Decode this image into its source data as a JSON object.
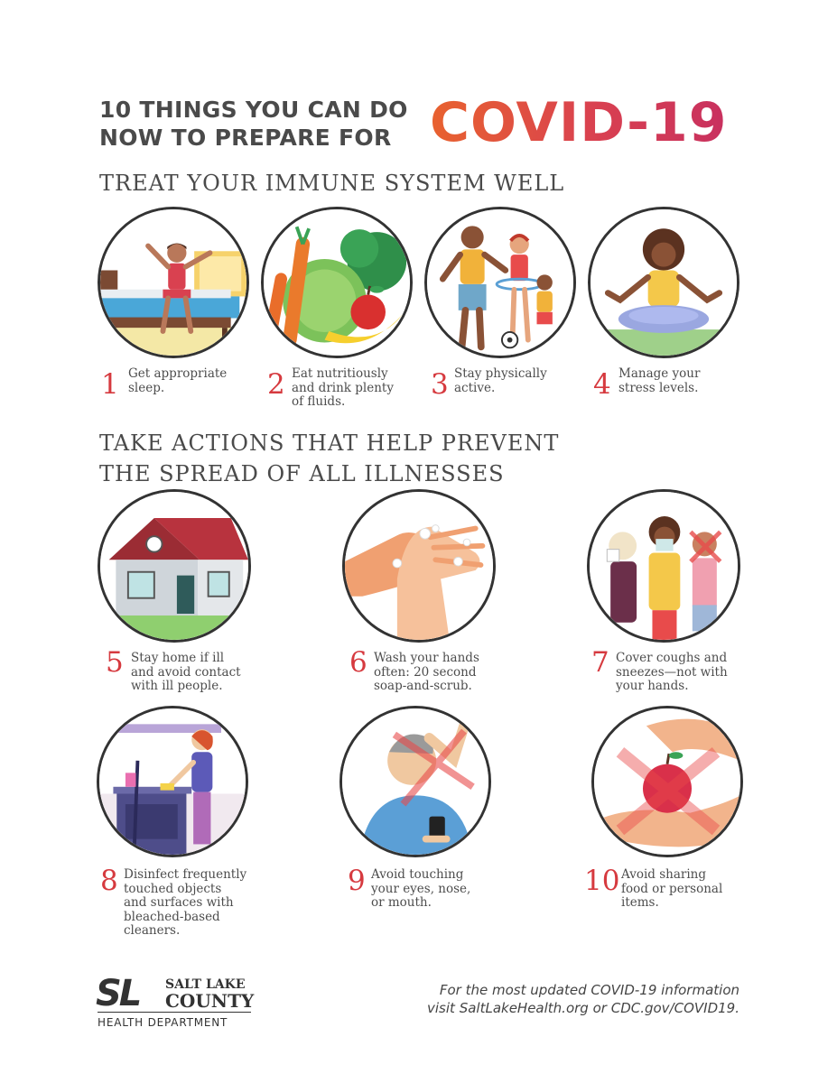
{
  "title": {
    "line1": "10 THINGS YOU CAN DO",
    "line2": "NOW TO PREPARE FOR",
    "highlight": "COVID-19"
  },
  "sections": [
    {
      "heading": "TREAT YOUR IMMUNE SYSTEM WELL"
    },
    {
      "heading_line1": "TAKE ACTIONS THAT HELP PREVENT",
      "heading_line2": "THE SPREAD OF ALL ILLNESSES"
    }
  ],
  "tips": [
    {
      "number": "1",
      "lines": [
        "Get appropriate",
        "sleep."
      ],
      "icon": "bed-wake-up-illustration"
    },
    {
      "number": "2",
      "lines": [
        "Eat nutritiously",
        "and drink plenty",
        "of fluids."
      ],
      "icon": "vegetables-fruit-illustration"
    },
    {
      "number": "3",
      "lines": [
        "Stay physically",
        "active."
      ],
      "icon": "family-exercise-illustration"
    },
    {
      "number": "4",
      "lines": [
        "Manage your",
        "stress levels."
      ],
      "icon": "meditation-illustration"
    },
    {
      "number": "5",
      "lines": [
        "Stay home if ill",
        "and avoid contact",
        "with ill people."
      ],
      "icon": "house-illustration"
    },
    {
      "number": "6",
      "lines": [
        "Wash your hands",
        "often: 20 second",
        "soap-and-scrub."
      ],
      "icon": "handwashing-illustration"
    },
    {
      "number": "7",
      "lines": [
        "Cover coughs and",
        "sneezes—not with",
        "your hands."
      ],
      "icon": "coughing-children-illustration"
    },
    {
      "number": "8",
      "lines": [
        "Disinfect frequently",
        "touched objects",
        "and surfaces with",
        "bleached-based",
        "cleaners."
      ],
      "icon": "cleaning-kitchen-illustration"
    },
    {
      "number": "9",
      "lines": [
        "Avoid touching",
        "your eyes, nose,",
        "or mouth."
      ],
      "icon": "touching-face-illustration"
    },
    {
      "number": "10",
      "lines": [
        "Avoid sharing",
        "food or personal",
        "items."
      ],
      "icon": "sharing-apple-illustration"
    }
  ],
  "footer": {
    "logo_mark": "SL",
    "logo_line1": "SALT LAKE",
    "logo_line2": "COUNTY",
    "logo_dept": "HEALTH DEPARTMENT",
    "info_line1": "For the most updated COVID-19 information",
    "info_line2_prefix": "visit ",
    "info_link1": "SaltLakeHealth.org",
    "info_middle": " or ",
    "info_link2": "CDC.gov/COVID19",
    "info_suffix": "."
  },
  "colors": {
    "accent_red": "#d63a3f",
    "covid_gradient_start": "#e8622f",
    "covid_gradient_end": "#c8305f",
    "text_dark": "#4a4a4a"
  }
}
